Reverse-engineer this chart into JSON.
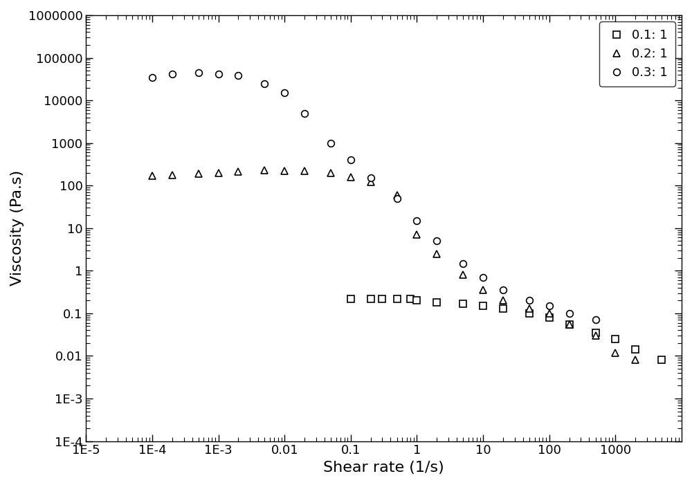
{
  "xlabel": "Shear rate (1/s)",
  "ylabel": "Viscosity (Pa.s)",
  "xlim_log": [
    -5,
    4
  ],
  "ylim_log": [
    -4,
    6
  ],
  "legend_labels": [
    "0.1: 1",
    "0.2: 1",
    "0.3: 1"
  ],
  "series_01_x": [
    0.1,
    0.2,
    0.3,
    0.5,
    0.8,
    1.0,
    2.0,
    5.0,
    10.0,
    20.0,
    50.0,
    100.0,
    200.0,
    500.0,
    1000.0,
    2000.0,
    5000.0
  ],
  "series_01_y": [
    0.22,
    0.22,
    0.22,
    0.22,
    0.22,
    0.2,
    0.18,
    0.17,
    0.15,
    0.13,
    0.1,
    0.08,
    0.055,
    0.035,
    0.025,
    0.014,
    0.008
  ],
  "series_02_x": [
    0.0001,
    0.0002,
    0.0005,
    0.001,
    0.002,
    0.005,
    0.01,
    0.02,
    0.05,
    0.1,
    0.2,
    0.5,
    1.0,
    2.0,
    5.0,
    10.0,
    20.0,
    50.0,
    100.0,
    200.0,
    500.0,
    1000.0,
    2000.0
  ],
  "series_02_y": [
    170.0,
    175.0,
    190.0,
    200.0,
    210.0,
    230.0,
    225.0,
    220.0,
    200.0,
    160.0,
    120.0,
    60.0,
    7.0,
    2.5,
    0.8,
    0.35,
    0.2,
    0.13,
    0.1,
    0.055,
    0.03,
    0.012,
    0.008
  ],
  "series_03_x": [
    0.0001,
    0.0002,
    0.0005,
    0.001,
    0.002,
    0.005,
    0.01,
    0.02,
    0.05,
    0.1,
    0.2,
    0.5,
    1.0,
    2.0,
    5.0,
    10.0,
    20.0,
    50.0,
    100.0,
    200.0,
    500.0
  ],
  "series_03_y": [
    35000,
    42000,
    45000,
    42000,
    38000,
    25000,
    15000,
    5000,
    1000,
    400,
    150,
    50,
    15,
    5.0,
    1.5,
    0.7,
    0.35,
    0.2,
    0.15,
    0.1,
    0.07
  ],
  "marker_size": 7,
  "fontsize_label": 16,
  "fontsize_tick": 13,
  "fontsize_legend": 13,
  "x_major_ticks": [
    -5,
    -4,
    -3,
    -2,
    -1,
    0,
    1,
    2,
    3
  ],
  "y_major_ticks": [
    -4,
    -3,
    -2,
    -1,
    0,
    1,
    2,
    3,
    4,
    5,
    6
  ],
  "x_tick_labels": [
    "1E-5",
    "1E-4",
    "1E-3",
    "0.01",
    "0.1",
    "1",
    "10",
    "100",
    "1000"
  ],
  "y_tick_labels": [
    "1E-4",
    "1E-3",
    "0.01",
    "0.1",
    "1",
    "10",
    "100",
    "1000",
    "10000",
    "100000",
    "1000000"
  ]
}
